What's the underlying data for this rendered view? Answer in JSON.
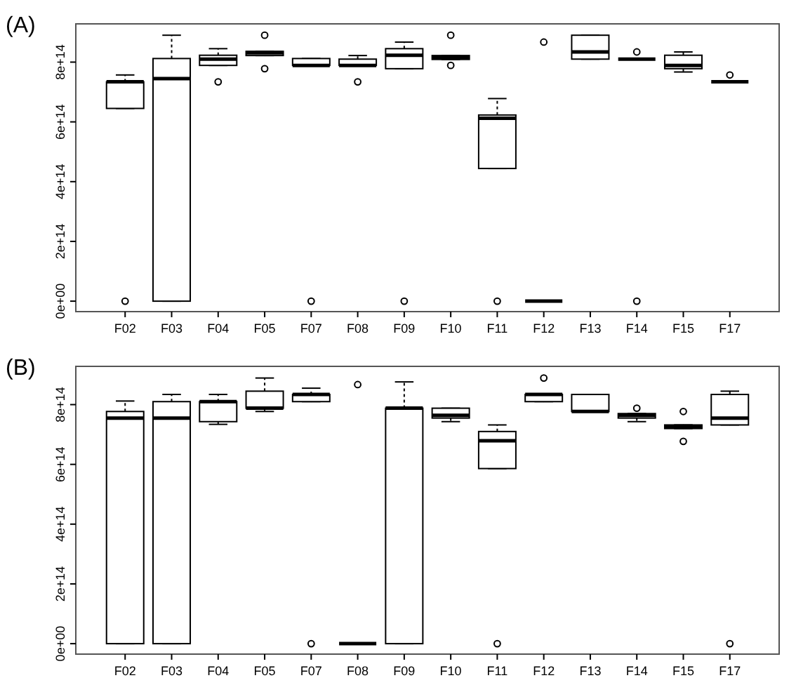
{
  "chart_data": [
    {
      "type": "box",
      "title": "(A)",
      "categories": [
        "F02",
        "F03",
        "F04",
        "F05",
        "F07",
        "F08",
        "F09",
        "F10",
        "F11",
        "F12",
        "F13",
        "F14",
        "F15",
        "F17"
      ],
      "ylim": [
        -35000000000000.0,
        928000000000000.0
      ],
      "yticks": [
        {
          "value": 0,
          "label": "0e+00"
        },
        {
          "value": 200000000000000.0,
          "label": "2e+14"
        },
        {
          "value": 400000000000000.0,
          "label": "4e+14"
        },
        {
          "value": 600000000000000.0,
          "label": "6e+14"
        },
        {
          "value": 800000000000000.0,
          "label": "8e+14"
        }
      ],
      "boxes": [
        {
          "low": 645000000000000.0,
          "q1": 645000000000000.0,
          "median": 734000000000000.0,
          "q3": 734000000000000.0,
          "high": 757000000000000.0,
          "outliers": [
            0
          ]
        },
        {
          "low": 0,
          "q1": 0,
          "median": 745000000000000.0,
          "q3": 812000000000000.0,
          "high": 890000000000000.0
        },
        {
          "low": 789000000000000.0,
          "q1": 789000000000000.0,
          "median": 810000000000000.0,
          "q3": 823000000000000.0,
          "high": 845000000000000.0,
          "outliers": [
            734000000000000.0
          ]
        },
        {
          "low": 822000000000000.0,
          "q1": 822000000000000.0,
          "median": 831000000000000.0,
          "q3": 836000000000000.0,
          "high": 836000000000000.0,
          "outliers": [
            890000000000000.0,
            778000000000000.0
          ]
        },
        {
          "low": 789000000000000.0,
          "q1": 789000000000000.0,
          "median": 789000000000000.0,
          "q3": 812000000000000.0,
          "high": 812000000000000.0,
          "outliers": [
            0
          ]
        },
        {
          "low": 789000000000000.0,
          "q1": 789000000000000.0,
          "median": 789000000000000.0,
          "q3": 810000000000000.0,
          "high": 822000000000000.0,
          "outliers": [
            734000000000000.0
          ]
        },
        {
          "low": 778000000000000.0,
          "q1": 778000000000000.0,
          "median": 823000000000000.0,
          "q3": 845000000000000.0,
          "high": 867000000000000.0,
          "outliers": [
            0
          ]
        },
        {
          "low": 809000000000000.0,
          "q1": 809000000000000.0,
          "median": 814000000000000.0,
          "q3": 822000000000000.0,
          "high": 822000000000000.0,
          "outliers": [
            890000000000000.0,
            789000000000000.0
          ]
        },
        {
          "low": 444000000000000.0,
          "q1": 444000000000000.0,
          "median": 612000000000000.0,
          "q3": 623000000000000.0,
          "high": 678000000000000.0,
          "outliers": [
            0
          ]
        },
        {
          "low": 0,
          "q1": 0,
          "median": 0,
          "q3": 0,
          "high": 0,
          "outliers": [
            867000000000000.0
          ]
        },
        {
          "low": 810000000000000.0,
          "q1": 810000000000000.0,
          "median": 834000000000000.0,
          "q3": 890000000000000.0,
          "high": 890000000000000.0
        },
        {
          "low": 810000000000000.0,
          "q1": 810000000000000.0,
          "median": 810000000000000.0,
          "q3": 810000000000000.0,
          "high": 810000000000000.0,
          "outliers": [
            834000000000000.0,
            0
          ]
        },
        {
          "low": 767000000000000.0,
          "q1": 778000000000000.0,
          "median": 789000000000000.0,
          "q3": 823000000000000.0,
          "high": 834000000000000.0
        },
        {
          "low": 734000000000000.0,
          "q1": 734000000000000.0,
          "median": 734000000000000.0,
          "q3": 734000000000000.0,
          "high": 734000000000000.0,
          "outliers": [
            757000000000000.0
          ]
        }
      ]
    },
    {
      "type": "box",
      "title": "(B)",
      "categories": [
        "F02",
        "F03",
        "F04",
        "F05",
        "F07",
        "F08",
        "F09",
        "F10",
        "F11",
        "F12",
        "F13",
        "F14",
        "F15",
        "F17"
      ],
      "ylim": [
        -35000000000000.0,
        928000000000000.0
      ],
      "yticks": [
        {
          "value": 0,
          "label": "0e+00"
        },
        {
          "value": 200000000000000.0,
          "label": "2e+14"
        },
        {
          "value": 400000000000000.0,
          "label": "4e+14"
        },
        {
          "value": 600000000000000.0,
          "label": "6e+14"
        },
        {
          "value": 800000000000000.0,
          "label": "8e+14"
        }
      ],
      "boxes": [
        {
          "low": 0,
          "q1": 0,
          "median": 755000000000000.0,
          "q3": 777000000000000.0,
          "high": 812000000000000.0
        },
        {
          "low": 0,
          "q1": 0,
          "median": 755000000000000.0,
          "q3": 810000000000000.0,
          "high": 834000000000000.0
        },
        {
          "low": 734000000000000.0,
          "q1": 743000000000000.0,
          "median": 810000000000000.0,
          "q3": 810000000000000.0,
          "high": 834000000000000.0
        },
        {
          "low": 777000000000000.0,
          "q1": 788000000000000.0,
          "median": 788000000000000.0,
          "q3": 845000000000000.0,
          "high": 889000000000000.0
        },
        {
          "low": 810000000000000.0,
          "q1": 810000000000000.0,
          "median": 834000000000000.0,
          "q3": 834000000000000.0,
          "high": 855000000000000.0,
          "outliers": [
            0
          ]
        },
        {
          "low": 0,
          "q1": 0,
          "median": 0,
          "q3": 0,
          "high": 0,
          "outliers": [
            867000000000000.0
          ]
        },
        {
          "low": 0,
          "q1": 0,
          "median": 788000000000000.0,
          "q3": 788000000000000.0,
          "high": 876000000000000.0
        },
        {
          "low": 743000000000000.0,
          "q1": 755000000000000.0,
          "median": 764000000000000.0,
          "q3": 788000000000000.0,
          "high": 788000000000000.0
        },
        {
          "low": 586000000000000.0,
          "q1": 586000000000000.0,
          "median": 679000000000000.0,
          "q3": 710000000000000.0,
          "high": 732000000000000.0,
          "outliers": [
            0
          ]
        },
        {
          "low": 810000000000000.0,
          "q1": 810000000000000.0,
          "median": 834000000000000.0,
          "q3": 834000000000000.0,
          "high": 834000000000000.0,
          "outliers": [
            889000000000000.0
          ]
        },
        {
          "low": 777000000000000.0,
          "q1": 777000000000000.0,
          "median": 777000000000000.0,
          "q3": 834000000000000.0,
          "high": 834000000000000.0
        },
        {
          "low": 743000000000000.0,
          "q1": 755000000000000.0,
          "median": 764000000000000.0,
          "q3": 770000000000000.0,
          "high": 770000000000000.0,
          "outliers": [
            788000000000000.0
          ]
        },
        {
          "low": 720000000000000.0,
          "q1": 720000000000000.0,
          "median": 726000000000000.0,
          "q3": 732000000000000.0,
          "high": 732000000000000.0,
          "outliers": [
            777000000000000.0,
            677000000000000.0
          ]
        },
        {
          "low": 732000000000000.0,
          "q1": 732000000000000.0,
          "median": 755000000000000.0,
          "q3": 834000000000000.0,
          "high": 845000000000000.0,
          "outliers": [
            0
          ]
        }
      ]
    }
  ]
}
